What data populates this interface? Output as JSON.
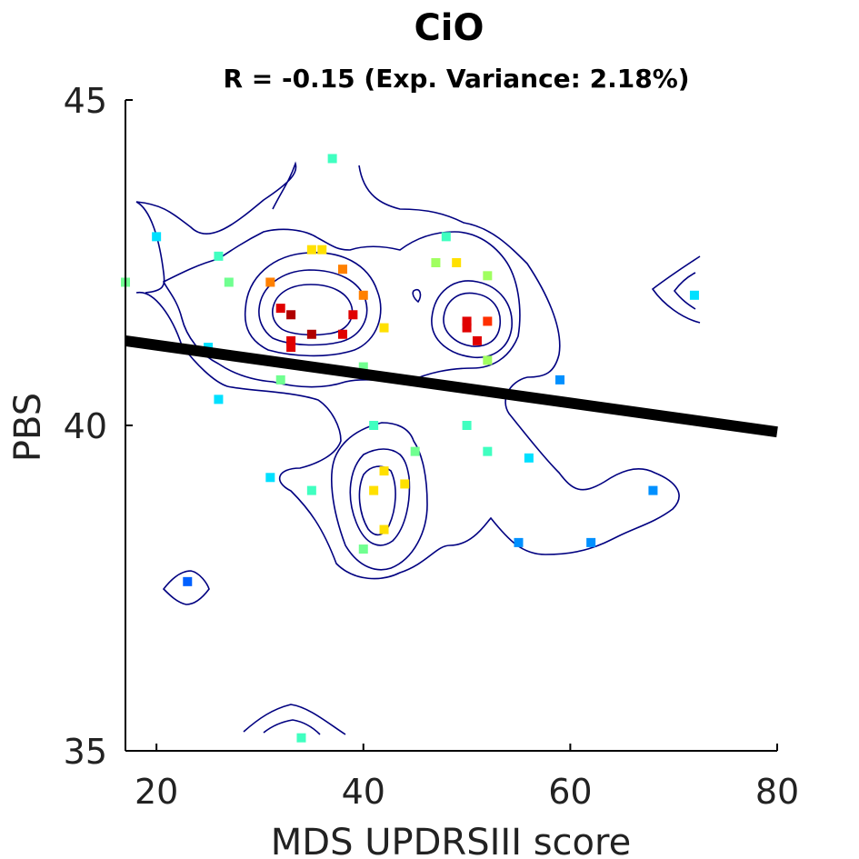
{
  "chart_data": {
    "type": "scatter",
    "title": "CiO",
    "subtitle": "R = -0.15 (Exp. Variance: 2.18%)",
    "xlabel": "MDS UPDRSIII score",
    "ylabel": "PBS",
    "xlim": [
      17,
      80
    ],
    "ylim": [
      35,
      45
    ],
    "x_ticks": [
      "20",
      "40",
      "60",
      "80"
    ],
    "y_ticks": [
      "35",
      "40",
      "45"
    ],
    "grid": false,
    "legend": "none",
    "fit_line": {
      "x": [
        17,
        80
      ],
      "y": [
        41.3,
        39.9
      ],
      "color": "#000000"
    },
    "points": [
      {
        "x": 37,
        "y": 44.1,
        "color": "#40ffc0"
      },
      {
        "x": 20,
        "y": 42.9,
        "color": "#00e0ff"
      },
      {
        "x": 48,
        "y": 42.9,
        "color": "#40ffc0"
      },
      {
        "x": 35,
        "y": 42.7,
        "color": "#ffe000"
      },
      {
        "x": 36,
        "y": 42.7,
        "color": "#ffe000"
      },
      {
        "x": 26,
        "y": 42.6,
        "color": "#40ffc0"
      },
      {
        "x": 47,
        "y": 42.5,
        "color": "#a0ff60"
      },
      {
        "x": 49,
        "y": 42.5,
        "color": "#ffe000"
      },
      {
        "x": 38,
        "y": 42.4,
        "color": "#ff8000"
      },
      {
        "x": 52,
        "y": 42.3,
        "color": "#a0ff60"
      },
      {
        "x": 17,
        "y": 42.2,
        "color": "#70ff90"
      },
      {
        "x": 27,
        "y": 42.2,
        "color": "#70ff90"
      },
      {
        "x": 31,
        "y": 42.2,
        "color": "#ff8000"
      },
      {
        "x": 72,
        "y": 42.0,
        "color": "#00e0ff"
      },
      {
        "x": 40,
        "y": 42.0,
        "color": "#ff8000"
      },
      {
        "x": 32,
        "y": 41.8,
        "color": "#e00000"
      },
      {
        "x": 33,
        "y": 41.7,
        "color": "#b00000"
      },
      {
        "x": 39,
        "y": 41.7,
        "color": "#e00000"
      },
      {
        "x": 50,
        "y": 41.6,
        "color": "#e00000"
      },
      {
        "x": 52,
        "y": 41.6,
        "color": "#ff3000"
      },
      {
        "x": 50,
        "y": 41.5,
        "color": "#e00000"
      },
      {
        "x": 42,
        "y": 41.5,
        "color": "#ffe000"
      },
      {
        "x": 35,
        "y": 41.4,
        "color": "#b00000"
      },
      {
        "x": 38,
        "y": 41.4,
        "color": "#e00000"
      },
      {
        "x": 51,
        "y": 41.3,
        "color": "#e00000"
      },
      {
        "x": 33,
        "y": 41.3,
        "color": "#e00000"
      },
      {
        "x": 33,
        "y": 41.2,
        "color": "#e00000"
      },
      {
        "x": 25,
        "y": 41.2,
        "color": "#00e0ff"
      },
      {
        "x": 52,
        "y": 41.0,
        "color": "#a0ff60"
      },
      {
        "x": 40,
        "y": 40.9,
        "color": "#70ff90"
      },
      {
        "x": 32,
        "y": 40.7,
        "color": "#70ff90"
      },
      {
        "x": 59,
        "y": 40.7,
        "color": "#0090ff"
      },
      {
        "x": 26,
        "y": 40.4,
        "color": "#00e0ff"
      },
      {
        "x": 41,
        "y": 40.0,
        "color": "#40ffc0"
      },
      {
        "x": 50,
        "y": 40.0,
        "color": "#40ffc0"
      },
      {
        "x": 45,
        "y": 39.6,
        "color": "#70ff90"
      },
      {
        "x": 52,
        "y": 39.6,
        "color": "#40ffc0"
      },
      {
        "x": 56,
        "y": 39.5,
        "color": "#00e0ff"
      },
      {
        "x": 42,
        "y": 39.3,
        "color": "#ffe000"
      },
      {
        "x": 31,
        "y": 39.2,
        "color": "#00e0ff"
      },
      {
        "x": 44,
        "y": 39.1,
        "color": "#ffe000"
      },
      {
        "x": 35,
        "y": 39.0,
        "color": "#40ffc0"
      },
      {
        "x": 41,
        "y": 39.0,
        "color": "#ffe000"
      },
      {
        "x": 68,
        "y": 39.0,
        "color": "#0090ff"
      },
      {
        "x": 42,
        "y": 38.4,
        "color": "#ffe000"
      },
      {
        "x": 55,
        "y": 38.2,
        "color": "#0090ff"
      },
      {
        "x": 62,
        "y": 38.2,
        "color": "#0090ff"
      },
      {
        "x": 40,
        "y": 38.1,
        "color": "#70ff90"
      },
      {
        "x": 23,
        "y": 37.6,
        "color": "#0060ff"
      },
      {
        "x": 34,
        "y": 35.2,
        "color": "#40ffc0"
      }
    ]
  }
}
